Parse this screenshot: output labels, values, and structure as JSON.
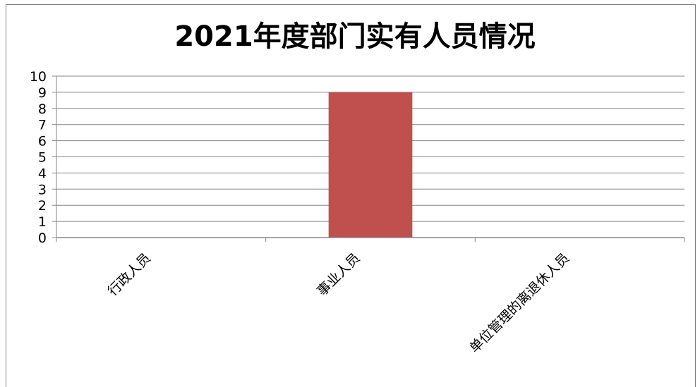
{
  "chart_data": {
    "type": "bar",
    "title": "2021年度部门实有人员情况",
    "categories": [
      "行政人员",
      "事业人员",
      "单位管理的离退休人员"
    ],
    "values": [
      0,
      9,
      0
    ],
    "xlabel": "",
    "ylabel": "",
    "ylim": [
      0,
      10
    ],
    "yticks": [
      0,
      1,
      2,
      3,
      4,
      5,
      6,
      7,
      8,
      9,
      10
    ],
    "grid": true,
    "legend": "none",
    "bar_color": "#c0504d",
    "gridline_color": "#868686"
  }
}
